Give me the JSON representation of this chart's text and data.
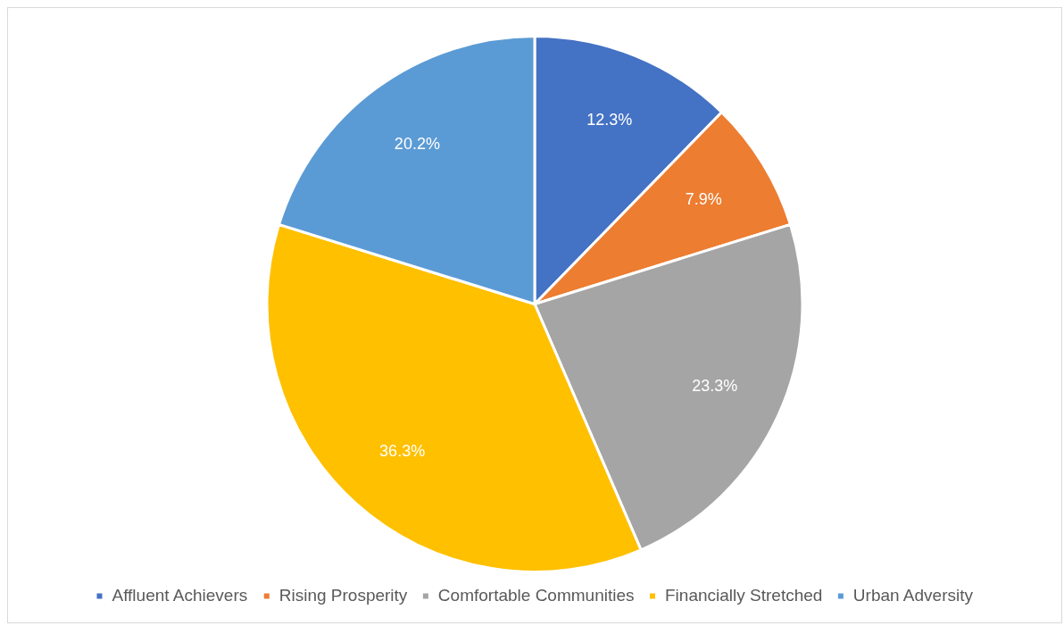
{
  "chart_data": {
    "type": "pie",
    "categories": [
      "Affluent Achievers",
      "Rising Prosperity",
      "Comfortable Communities",
      "Financially Stretched",
      "Urban Adversity"
    ],
    "values": [
      12.3,
      7.9,
      23.3,
      36.3,
      20.2
    ],
    "colors": [
      "#4472c4",
      "#ed7d31",
      "#a5a5a5",
      "#ffc000",
      "#5b9bd5"
    ],
    "value_labels": [
      "12.3%",
      "7.9%",
      "23.3%",
      "36.3%",
      "20.2%"
    ],
    "legend": "bottom"
  }
}
